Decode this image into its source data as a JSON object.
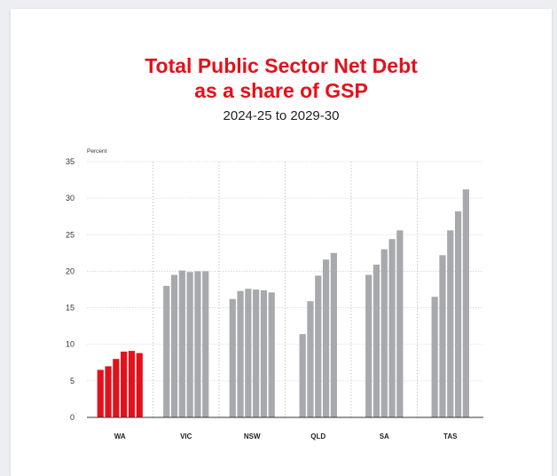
{
  "chart_data": {
    "type": "bar",
    "title_line1": "Total Public Sector Net Debt",
    "title_line2": "as a share of GSP",
    "subtitle": "2024-25 to 2029-30",
    "ylabel": "Percent",
    "ylim": [
      0,
      35
    ],
    "yticks": [
      0,
      5,
      10,
      15,
      20,
      25,
      30,
      35
    ],
    "grid": true,
    "highlight_color": "#e3111b",
    "bar_color": "#a7a9ac",
    "categories": [
      "WA",
      "VIC",
      "NSW",
      "QLD",
      "SA",
      "TAS"
    ],
    "groups": [
      {
        "name": "WA",
        "values": [
          6.5,
          7.0,
          8.0,
          9.0,
          9.1,
          8.8
        ],
        "highlight": true
      },
      {
        "name": "VIC",
        "values": [
          18.0,
          19.5,
          20.1,
          19.9,
          20.0,
          20.0
        ]
      },
      {
        "name": "NSW",
        "values": [
          16.2,
          17.3,
          17.6,
          17.5,
          17.4,
          17.1
        ]
      },
      {
        "name": "QLD",
        "values": [
          11.4,
          15.9,
          19.4,
          21.6,
          22.5
        ]
      },
      {
        "name": "SA",
        "values": [
          19.5,
          20.9,
          23.0,
          24.4,
          25.6
        ]
      },
      {
        "name": "TAS",
        "values": [
          16.5,
          22.2,
          25.6,
          28.2,
          31.2
        ]
      }
    ]
  }
}
